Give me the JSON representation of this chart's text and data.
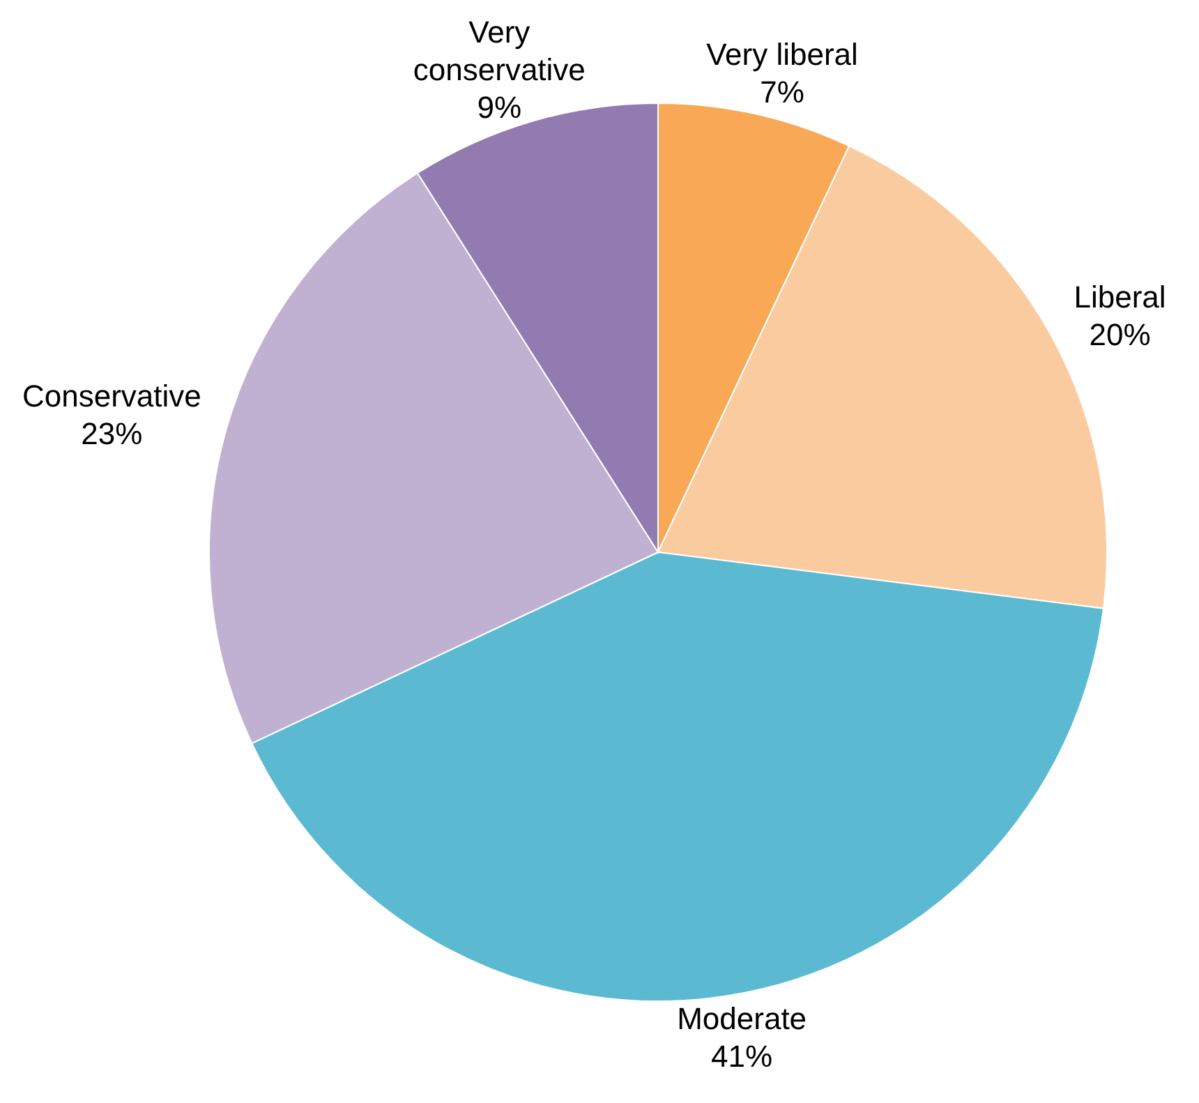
{
  "chart_data": {
    "type": "pie",
    "categories": [
      "Very liberal",
      "Liberal",
      "Moderate",
      "Conservative",
      "Very conservative"
    ],
    "values": [
      7,
      20,
      41,
      23,
      9
    ],
    "value_labels": [
      "7%",
      "20%",
      "41%",
      "23%",
      "9%"
    ],
    "colors": [
      "#f9a856",
      "#fbcba0",
      "#5bb9d1",
      "#c0b1d3",
      "#927bb0"
    ]
  }
}
